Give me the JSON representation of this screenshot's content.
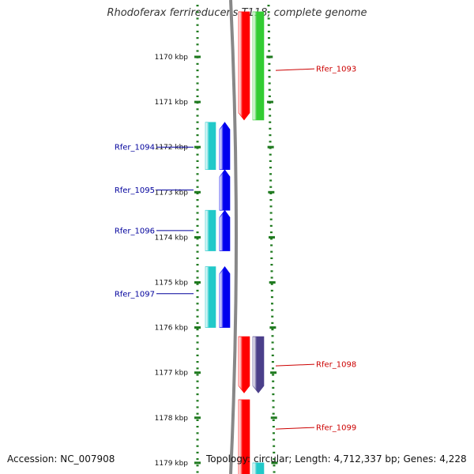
{
  "title": "Rhodoferax ferrireducens T118, complete genome",
  "accession": "Accession: NC_007908",
  "summary": "Topology: circular; Length: 4,712,337 bp; Genes: 4,228",
  "colors": {
    "backbone": "#888888",
    "tick": "#1f7a1f",
    "ticklabel": "#111111",
    "forward_label": "#cc0000",
    "reverse_label": "#00009c",
    "red": "#ff0000",
    "green": "#33cc33",
    "cyan": "#22c9c9",
    "blue": "#0000ee",
    "slate": "#4b3f8a"
  },
  "ticks": [
    "1170 kbp",
    "1171 kbp",
    "1172 kbp",
    "1173 kbp",
    "1174 kbp",
    "1175 kbp",
    "1176 kbp",
    "1177 kbp",
    "1178 kbp",
    "1179 kbp"
  ],
  "features": [
    {
      "id": "red-1",
      "track": "forward-cds",
      "color": "red",
      "start": 1169.0,
      "end": 1171.4,
      "strand": "reverse"
    },
    {
      "id": "green-1",
      "track": "forward-gene",
      "color": "green",
      "start": 1169.0,
      "end": 1171.4,
      "strand": "forward"
    },
    {
      "id": "cyan-1094",
      "track": "reverse-gene",
      "color": "cyan",
      "start": 1171.45,
      "end": 1172.5,
      "strand": "none"
    },
    {
      "id": "blue-1094",
      "track": "reverse-cds",
      "color": "blue",
      "start": 1171.45,
      "end": 1172.5,
      "strand": "up"
    },
    {
      "id": "blue-1095",
      "track": "reverse-cds",
      "color": "blue",
      "start": 1172.5,
      "end": 1173.4,
      "strand": "up"
    },
    {
      "id": "cyan-1096",
      "track": "reverse-gene",
      "color": "cyan",
      "start": 1173.4,
      "end": 1174.3,
      "strand": "none"
    },
    {
      "id": "blue-1096",
      "track": "reverse-cds",
      "color": "blue",
      "start": 1173.4,
      "end": 1174.3,
      "strand": "up"
    },
    {
      "id": "cyan-1097",
      "track": "reverse-gene",
      "color": "cyan",
      "start": 1174.65,
      "end": 1176.0,
      "strand": "none"
    },
    {
      "id": "blue-1097",
      "track": "reverse-cds",
      "color": "blue",
      "start": 1174.65,
      "end": 1176.0,
      "strand": "up"
    },
    {
      "id": "red-1098",
      "track": "forward-cds",
      "color": "red",
      "start": 1176.2,
      "end": 1177.45,
      "strand": "down"
    },
    {
      "id": "slate-1098",
      "track": "forward-gene",
      "color": "slate",
      "start": 1176.2,
      "end": 1177.45,
      "strand": "down"
    },
    {
      "id": "red-1099",
      "track": "forward-cds",
      "color": "red",
      "start": 1177.6,
      "end": 1179.3,
      "strand": "none"
    },
    {
      "id": "cyan-bottom",
      "track": "forward-gene",
      "color": "cyan",
      "start": 1179.0,
      "end": 1179.3,
      "strand": "none"
    }
  ],
  "labels": [
    {
      "text": "Rfer_1093",
      "side": "right",
      "kbp": 1170.3
    },
    {
      "text": "Rfer_1094",
      "side": "left",
      "kbp": 1172.0
    },
    {
      "text": "Rfer_1095",
      "side": "left",
      "kbp": 1172.95
    },
    {
      "text": "Rfer_1096",
      "side": "left",
      "kbp": 1173.85
    },
    {
      "text": "Rfer_1097",
      "side": "left",
      "kbp": 1175.25
    },
    {
      "text": "Rfer_1098",
      "side": "right",
      "kbp": 1176.85
    },
    {
      "text": "Rfer_1099",
      "side": "right",
      "kbp": 1178.25
    }
  ]
}
